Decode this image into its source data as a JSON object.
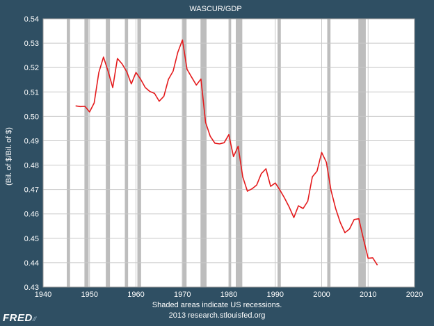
{
  "chart_data": {
    "type": "line",
    "title": "WASCUR/GDP",
    "ylabel": "(Bil. of $/Bil. of $)",
    "xlabel": "",
    "xlim": [
      1940,
      2020
    ],
    "ylim": [
      0.43,
      0.54
    ],
    "x_ticks": [
      "1940",
      "1950",
      "1960",
      "1970",
      "1980",
      "1990",
      "2000",
      "2010",
      "2020"
    ],
    "y_ticks": [
      "0.43",
      "0.44",
      "0.45",
      "0.46",
      "0.47",
      "0.48",
      "0.49",
      "0.50",
      "0.51",
      "0.52",
      "0.53",
      "0.54"
    ],
    "grid": true,
    "line_color": "#e41a1c",
    "recession_color": "#bdbdbd",
    "recessions": [
      [
        1945.1,
        1945.8
      ],
      [
        1948.9,
        1949.8
      ],
      [
        1953.5,
        1954.4
      ],
      [
        1957.6,
        1958.3
      ],
      [
        1960.3,
        1961.1
      ],
      [
        1969.9,
        1970.9
      ],
      [
        1973.9,
        1975.2
      ],
      [
        1980.0,
        1980.5
      ],
      [
        1981.5,
        1982.9
      ],
      [
        1990.5,
        1991.2
      ],
      [
        2001.2,
        2001.9
      ],
      [
        2007.9,
        2009.5
      ]
    ],
    "series": [
      {
        "x": [
          1947.0,
          1948.0,
          1949.0,
          1950.0,
          1951.0,
          1952.0,
          1953.0,
          1954.0,
          1955.0,
          1956.0,
          1957.0,
          1958.0,
          1959.0,
          1960.0,
          1961.0,
          1962.0,
          1963.0,
          1964.0,
          1965.0,
          1966.0,
          1967.0,
          1968.0,
          1969.0,
          1970.0,
          1971.0,
          1972.0,
          1973.0,
          1974.0,
          1975.0,
          1976.0,
          1977.0,
          1978.0,
          1979.0,
          1980.0,
          1981.0,
          1982.0,
          1983.0,
          1984.0,
          1985.0,
          1986.0,
          1987.0,
          1988.0,
          1989.0,
          1990.0,
          1991.0,
          1992.0,
          1993.0,
          1994.0,
          1995.0,
          1996.0,
          1997.0,
          1998.0,
          1999.0,
          2000.0,
          2001.0,
          2002.0,
          2003.0,
          2004.0,
          2005.0,
          2006.0,
          2007.0,
          2008.0,
          2009.0,
          2010.0,
          2011.0,
          2012.0
        ],
        "values": [
          0.5043,
          0.504,
          0.5041,
          0.5018,
          0.5055,
          0.518,
          0.5243,
          0.5185,
          0.5118,
          0.5237,
          0.5215,
          0.5183,
          0.5133,
          0.518,
          0.5152,
          0.5118,
          0.5102,
          0.5094,
          0.5062,
          0.5082,
          0.5152,
          0.5185,
          0.5262,
          0.5313,
          0.5193,
          0.516,
          0.5128,
          0.5153,
          0.4975,
          0.4918,
          0.489,
          0.4887,
          0.4892,
          0.4925,
          0.4835,
          0.4877,
          0.4752,
          0.4693,
          0.4703,
          0.4718,
          0.4765,
          0.4785,
          0.4713,
          0.4727,
          0.4698,
          0.4665,
          0.4628,
          0.4585,
          0.4633,
          0.4622,
          0.4652,
          0.4752,
          0.4775,
          0.4852,
          0.4812,
          0.4697,
          0.4623,
          0.4565,
          0.4523,
          0.4538,
          0.4577,
          0.458,
          0.4497,
          0.4418,
          0.442,
          0.439
        ]
      }
    ]
  },
  "footer": {
    "line1": "Shaded areas indicate US recessions.",
    "line2": "2013 research.stlouisfed.org"
  },
  "logo": {
    "text": "FRED"
  }
}
